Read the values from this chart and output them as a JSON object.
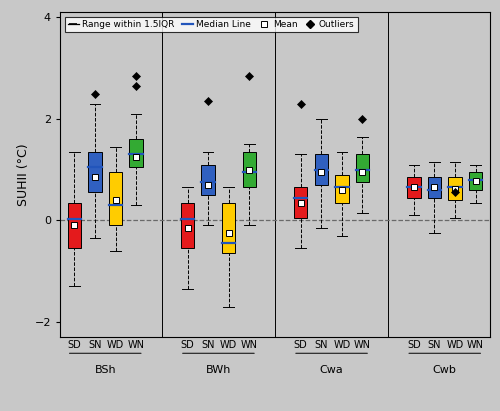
{
  "ylabel": "SUHII (°C)",
  "ylim": [
    -2.3,
    4.1
  ],
  "yticks": [
    -2,
    0,
    2,
    4
  ],
  "background_color": "#c8c8c8",
  "groups": [
    "BSh",
    "BWh",
    "Cwa",
    "Cwb"
  ],
  "seasons": [
    "SD",
    "SN",
    "WD",
    "WN"
  ],
  "season_colors": [
    "#e41a1c",
    "#3060c0",
    "#ffcc00",
    "#33aa33"
  ],
  "boxes": {
    "BSh": {
      "SD": {
        "q1": -0.55,
        "median": 0.02,
        "q3": 0.35,
        "mean": -0.1,
        "whislo": -1.3,
        "whishi": 1.35,
        "fliers": []
      },
      "SN": {
        "q1": 0.55,
        "median": 1.05,
        "q3": 1.35,
        "mean": 0.85,
        "whislo": -0.35,
        "whishi": 2.3,
        "fliers": [
          2.5
        ]
      },
      "WD": {
        "q1": -0.1,
        "median": 0.3,
        "q3": 0.95,
        "mean": 0.4,
        "whislo": -0.6,
        "whishi": 1.45,
        "fliers": []
      },
      "WN": {
        "q1": 1.05,
        "median": 1.3,
        "q3": 1.6,
        "mean": 1.25,
        "whislo": 0.3,
        "whishi": 2.1,
        "fliers": [
          2.65,
          2.85
        ]
      }
    },
    "BWh": {
      "SD": {
        "q1": -0.55,
        "median": 0.02,
        "q3": 0.35,
        "mean": -0.15,
        "whislo": -1.35,
        "whishi": 0.65,
        "fliers": []
      },
      "SN": {
        "q1": 0.5,
        "median": 0.75,
        "q3": 1.1,
        "mean": 0.7,
        "whislo": -0.1,
        "whishi": 1.35,
        "fliers": [
          2.35
        ]
      },
      "WD": {
        "q1": -0.65,
        "median": -0.45,
        "q3": 0.35,
        "mean": -0.25,
        "whislo": -1.7,
        "whishi": 0.65,
        "fliers": []
      },
      "WN": {
        "q1": 0.65,
        "median": 0.95,
        "q3": 1.35,
        "mean": 1.0,
        "whislo": -0.1,
        "whishi": 1.5,
        "fliers": [
          2.85
        ]
      }
    },
    "Cwa": {
      "SD": {
        "q1": 0.05,
        "median": 0.45,
        "q3": 0.65,
        "mean": 0.35,
        "whislo": -0.55,
        "whishi": 1.3,
        "fliers": [
          2.3
        ]
      },
      "SN": {
        "q1": 0.7,
        "median": 1.0,
        "q3": 1.3,
        "mean": 0.95,
        "whislo": -0.15,
        "whishi": 2.0,
        "fliers": []
      },
      "WD": {
        "q1": 0.35,
        "median": 0.65,
        "q3": 0.9,
        "mean": 0.6,
        "whislo": -0.3,
        "whishi": 1.35,
        "fliers": []
      },
      "WN": {
        "q1": 0.75,
        "median": 1.0,
        "q3": 1.3,
        "mean": 0.95,
        "whislo": 0.15,
        "whishi": 1.65,
        "fliers": [
          2.0
        ]
      }
    },
    "Cwb": {
      "SD": {
        "q1": 0.45,
        "median": 0.65,
        "q3": 0.85,
        "mean": 0.65,
        "whislo": 0.1,
        "whishi": 1.1,
        "fliers": []
      },
      "SN": {
        "q1": 0.45,
        "median": 0.6,
        "q3": 0.85,
        "mean": 0.65,
        "whislo": -0.25,
        "whishi": 1.15,
        "fliers": []
      },
      "WD": {
        "q1": 0.4,
        "median": 0.65,
        "q3": 0.85,
        "mean": 0.62,
        "whislo": 0.05,
        "whishi": 1.15,
        "fliers": [
          0.55
        ]
      },
      "WN": {
        "q1": 0.6,
        "median": 0.8,
        "q3": 0.95,
        "mean": 0.78,
        "whislo": 0.35,
        "whishi": 1.1,
        "fliers": []
      }
    }
  }
}
